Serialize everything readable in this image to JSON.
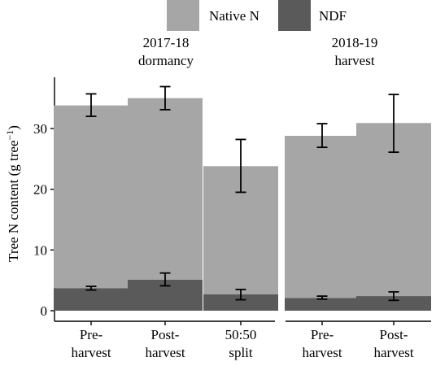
{
  "chart_data": {
    "type": "bar",
    "stacked": true,
    "ylabel": "Tree N content (g tree",
    "ylabel_sup": "−1",
    "ylabel_close": ")",
    "ylim": [
      0,
      36
    ],
    "yticks": [
      0,
      10,
      20,
      30
    ],
    "legend": {
      "placement": "top",
      "items": [
        {
          "label": "Native N",
          "color": "#a6a6a6"
        },
        {
          "label": "NDF",
          "color": "#5a5a5a"
        }
      ]
    },
    "panels": [
      {
        "title_lines": [
          "2017-18",
          "dormancy"
        ],
        "categories": [
          {
            "lines": [
              "Pre-",
              "harvest"
            ],
            "total": 33.8,
            "total_err": [
              32.0,
              35.7
            ],
            "ndf": 3.7,
            "ndf_err": [
              3.4,
              4.0
            ]
          },
          {
            "lines": [
              "Post-",
              "harvest"
            ],
            "total": 35.0,
            "total_err": [
              33.1,
              36.9
            ],
            "ndf": 5.1,
            "ndf_err": [
              4.1,
              6.2
            ]
          },
          {
            "lines": [
              "50:50",
              "split"
            ],
            "total": 23.8,
            "total_err": [
              19.5,
              28.2
            ],
            "ndf": 2.7,
            "ndf_err": [
              1.8,
              3.5
            ]
          }
        ]
      },
      {
        "title_lines": [
          "2018-19",
          "harvest"
        ],
        "categories": [
          {
            "lines": [
              "Pre-",
              "harvest"
            ],
            "total": 28.8,
            "total_err": [
              26.9,
              30.8
            ],
            "ndf": 2.1,
            "ndf_err": [
              1.9,
              2.4
            ]
          },
          {
            "lines": [
              "Post-",
              "harvest"
            ],
            "total": 30.9,
            "total_err": [
              26.1,
              35.6
            ],
            "ndf": 2.4,
            "ndf_err": [
              1.7,
              3.1
            ]
          }
        ]
      }
    ],
    "colors": {
      "native": "#a6a6a6",
      "ndf": "#5a5a5a",
      "error": "#000000"
    }
  }
}
